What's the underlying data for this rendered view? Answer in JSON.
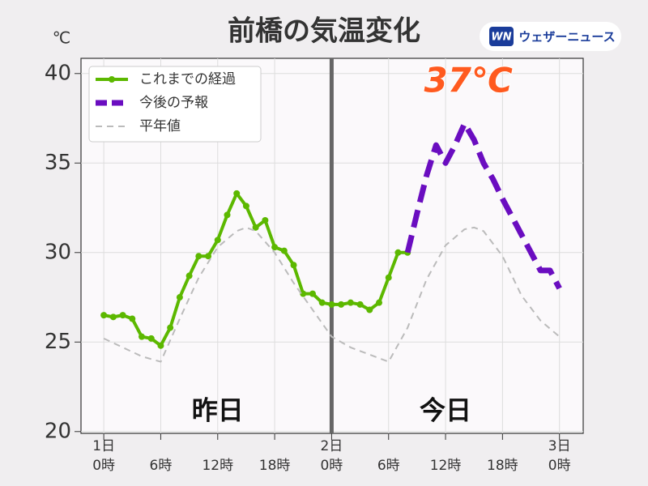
{
  "chart_data": {
    "type": "line",
    "title": "前橋の気温変化",
    "ylabel": "℃",
    "brand": {
      "logo": "WN",
      "name": "ウェザーニュース"
    },
    "xlim": [
      -2.4,
      50.5
    ],
    "ylim": [
      19.9,
      40.85
    ],
    "yticks": [
      20,
      25,
      30,
      35,
      40
    ],
    "xticks": [
      {
        "value": 0,
        "label": "0時"
      },
      {
        "value": 6,
        "label": "6時"
      },
      {
        "value": 12,
        "label": "12時"
      },
      {
        "value": 18,
        "label": "18時"
      },
      {
        "value": 24,
        "label": "0時"
      },
      {
        "value": 30,
        "label": "6時"
      },
      {
        "value": 36,
        "label": "12時"
      },
      {
        "value": 42,
        "label": "18時"
      },
      {
        "value": 48,
        "label": "0時"
      }
    ],
    "day_labels": [
      {
        "value": 0,
        "label": "1日"
      },
      {
        "value": 24,
        "label": "2日"
      },
      {
        "value": 48,
        "label": "3日"
      }
    ],
    "divider_x": 24,
    "grid": true,
    "legend": "upper left",
    "series": [
      {
        "name": "これまでの経過",
        "color": "#5cb800",
        "style": "solid-markers",
        "x": [
          0,
          1,
          2,
          3,
          4,
          5,
          6,
          7,
          8,
          9,
          10,
          11,
          12,
          13,
          14,
          15,
          16,
          17,
          18,
          19,
          20,
          21,
          22,
          23,
          24,
          25,
          26,
          27,
          28,
          29,
          30,
          31,
          32
        ],
        "values": [
          26.5,
          26.4,
          26.5,
          26.3,
          25.3,
          25.2,
          24.8,
          25.8,
          27.5,
          28.7,
          29.8,
          29.8,
          30.7,
          32.1,
          33.3,
          32.6,
          31.4,
          31.8,
          30.3,
          30.1,
          29.3,
          27.7,
          27.7,
          27.2,
          27.1,
          27.1,
          27.2,
          27.1,
          26.8,
          27.2,
          28.6,
          30.0,
          30.0
        ]
      },
      {
        "name": "今後の予報",
        "color": "#6a0dc0",
        "style": "thick-dashed",
        "x": [
          32,
          33,
          34,
          35,
          36,
          37,
          38,
          39,
          40,
          41,
          42,
          43,
          44,
          45,
          46,
          47,
          48
        ],
        "values": [
          30.0,
          32.2,
          34.3,
          36.0,
          35.0,
          36.0,
          37.2,
          36.3,
          35.0,
          34.1,
          33.0,
          32.0,
          31.0,
          30.0,
          29.0,
          29.0,
          28.0
        ]
      },
      {
        "name": "平年値",
        "color": "#bbbbbb",
        "style": "dashed",
        "x": [
          0,
          2,
          4,
          6,
          8,
          10,
          12,
          14,
          15,
          16,
          18,
          20,
          22,
          24,
          26,
          28,
          30,
          32,
          34,
          36,
          38,
          39,
          40,
          42,
          44,
          46,
          48
        ],
        "values": [
          25.2,
          24.7,
          24.2,
          23.9,
          26.3,
          28.6,
          30.3,
          31.2,
          31.4,
          31.2,
          30.0,
          28.3,
          26.8,
          25.3,
          24.7,
          24.3,
          23.9,
          25.8,
          28.5,
          30.4,
          31.3,
          31.4,
          31.2,
          29.8,
          27.6,
          26.2,
          25.3
        ]
      }
    ],
    "annotations": [
      {
        "text": "昨日",
        "x": 12,
        "y": 21.1
      },
      {
        "text": "今日",
        "x": 36,
        "y": 21.1
      },
      {
        "text": "37℃",
        "x": 38.4,
        "y": 39.5
      }
    ]
  }
}
